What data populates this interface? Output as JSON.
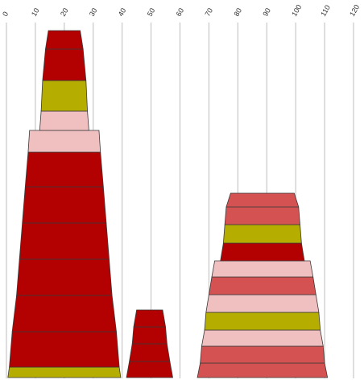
{
  "chart_data": {
    "type": "bar",
    "subtype": "stacked-trapezoid-funnel",
    "orientation": "horizontal-axis-top",
    "x_axis": {
      "ticks": [
        0,
        10,
        20,
        30,
        40,
        50,
        60,
        70,
        80,
        90,
        100,
        110,
        120
      ],
      "min": 0,
      "max": 120,
      "grid": true,
      "label_rotation_deg": 60
    },
    "title": "",
    "xlabel": "",
    "ylabel": "",
    "legend": "none",
    "colors": {
      "dark_red": "#b30000",
      "olive": "#b5ad00",
      "light_pink": "#f0c0c0",
      "salmon": "#d55252"
    },
    "stacks": [
      {
        "center": 20,
        "segments_bottom_to_top": [
          {
            "color": "olive",
            "width_bottom": 39,
            "width_top": 38
          },
          {
            "color": "dark_red",
            "width_bottom": 38,
            "width_top": 36
          },
          {
            "color": "dark_red",
            "width_bottom": 36,
            "width_top": 33
          },
          {
            "color": "dark_red",
            "width_bottom": 33,
            "width_top": 31
          },
          {
            "color": "dark_red",
            "width_bottom": 31,
            "width_top": 29
          },
          {
            "color": "dark_red",
            "width_bottom": 29,
            "width_top": 27
          },
          {
            "color": "dark_red",
            "width_bottom": 27,
            "width_top": 25
          },
          {
            "color": "light_pink",
            "width_bottom": 25,
            "width_top": 24
          },
          {
            "color": "light_pink",
            "width_bottom": 17,
            "width_top": 16
          },
          {
            "color": "olive",
            "width_bottom": 16,
            "width_top": 15
          },
          {
            "color": "dark_red",
            "width_bottom": 15,
            "width_top": 13
          },
          {
            "color": "dark_red",
            "width_bottom": 13,
            "width_top": 11
          }
        ]
      },
      {
        "center": 49.5,
        "segments_bottom_to_top": [
          {
            "color": "dark_red",
            "width_bottom": 16,
            "width_top": 14
          },
          {
            "color": "dark_red",
            "width_bottom": 14,
            "width_top": 12
          },
          {
            "color": "dark_red",
            "width_bottom": 12,
            "width_top": 11
          },
          {
            "color": "dark_red",
            "width_bottom": 11,
            "width_top": 9
          }
        ]
      },
      {
        "center": 88.5,
        "segments_bottom_to_top": [
          {
            "color": "salmon",
            "width_bottom": 45,
            "width_top": 43
          },
          {
            "color": "salmon",
            "width_bottom": 43,
            "width_top": 42
          },
          {
            "color": "light_pink",
            "width_bottom": 42,
            "width_top": 40
          },
          {
            "color": "olive",
            "width_bottom": 40,
            "width_top": 39
          },
          {
            "color": "light_pink",
            "width_bottom": 39,
            "width_top": 37
          },
          {
            "color": "salmon",
            "width_bottom": 37,
            "width_top": 35
          },
          {
            "color": "light_pink",
            "width_bottom": 35,
            "width_top": 33
          },
          {
            "color": "dark_red",
            "width_bottom": 29,
            "width_top": 27
          },
          {
            "color": "olive",
            "width_bottom": 27,
            "width_top": 26
          },
          {
            "color": "salmon",
            "width_bottom": 26,
            "width_top": 25
          },
          {
            "color": "salmon",
            "width_bottom": 25,
            "width_top": 22
          }
        ]
      }
    ]
  }
}
